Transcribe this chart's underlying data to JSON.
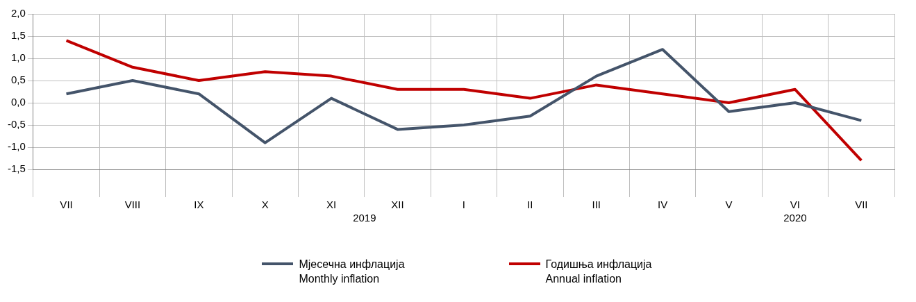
{
  "chart_data": {
    "type": "line",
    "categories": [
      "VII",
      "VIII",
      "IX",
      "X",
      "XI",
      "XII",
      "I",
      "II",
      "III",
      "IV",
      "V",
      "VI",
      "VII"
    ],
    "series": [
      {
        "name": "Мјесечна инфлација\nMonthly inflation",
        "color": "#44546a",
        "values": [
          0.2,
          0.5,
          0.2,
          -0.9,
          0.1,
          -0.6,
          -0.5,
          -0.3,
          0.6,
          1.2,
          -0.2,
          0.0,
          -0.4
        ]
      },
      {
        "name": "Годишња инфлација\nAnnual inflation",
        "color": "#c00000",
        "values": [
          1.4,
          0.8,
          0.5,
          0.7,
          0.6,
          0.3,
          0.3,
          0.1,
          0.4,
          0.2,
          0.0,
          0.3,
          -1.3
        ]
      }
    ],
    "ylim": [
      -1.5,
      2.0
    ],
    "yticks": [
      {
        "value": -1.5,
        "label": "-1,5"
      },
      {
        "value": -1.0,
        "label": "-1,0"
      },
      {
        "value": -0.5,
        "label": "-0,5"
      },
      {
        "value": 0,
        "label": "0,0"
      },
      {
        "value": 0.5,
        "label": "0,5"
      },
      {
        "value": 1.0,
        "label": "1,0"
      },
      {
        "value": 1.5,
        "label": "1,5"
      },
      {
        "value": 2.0,
        "label": "2,0"
      }
    ],
    "annotations": [
      "2019",
      "2020"
    ],
    "grid": true,
    "legend": "bottom",
    "marker": "none",
    "line_style": "solid"
  }
}
